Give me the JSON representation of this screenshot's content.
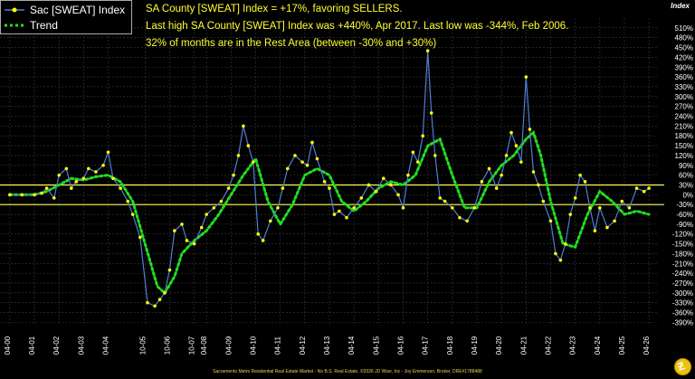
{
  "chart_data": {
    "type": "line",
    "title": "",
    "y_axis_title": "Index",
    "xlabel": "",
    "ylabel": "Index",
    "ylim": [
      -400,
      540
    ],
    "y_ticks": [
      "510%",
      "480%",
      "450%",
      "420%",
      "390%",
      "360%",
      "330%",
      "300%",
      "270%",
      "240%",
      "210%",
      "180%",
      "150%",
      "120%",
      "90%",
      "60%",
      "30%",
      "0%",
      "-30%",
      "-60%",
      "-90%",
      "-120%",
      "-150%",
      "-180%",
      "-210%",
      "-240%",
      "-270%",
      "-300%",
      "-330%",
      "-360%",
      "-390%"
    ],
    "y_tick_values": [
      510,
      480,
      450,
      420,
      390,
      360,
      330,
      300,
      270,
      240,
      210,
      180,
      150,
      120,
      90,
      60,
      30,
      0,
      -30,
      -60,
      -90,
      -120,
      -150,
      -180,
      -210,
      -240,
      -270,
      -300,
      -330,
      -360,
      -390
    ],
    "x_ticks": [
      "04-00",
      "04-01",
      "04-02",
      "04-03",
      "04-04",
      "10-05",
      "10-06",
      "10-07",
      "04-08",
      "04-09",
      "04-10",
      "04-11",
      "04-12",
      "04-13",
      "04-14",
      "04-15",
      "04-16",
      "04-17",
      "04-18",
      "04-19",
      "04-20",
      "04-21",
      "04-22",
      "04-23",
      "04-24",
      "04-25",
      "04-26"
    ],
    "x_tick_years": [
      2000,
      2001,
      2002,
      2003,
      2004,
      2005.5,
      2006.5,
      2007.5,
      2008,
      2009,
      2010,
      2011,
      2012,
      2013,
      2014,
      2015,
      2016,
      2017,
      2018,
      2019,
      2020,
      2021,
      2022,
      2023,
      2024,
      2025,
      2026
    ],
    "rest_area": [
      -30,
      30
    ],
    "grid": true,
    "legend_position": "top-left",
    "series": [
      {
        "name": "Sac [SWEAT] Index",
        "color": "#4f7fd4",
        "marker_color": "#ffff00",
        "x": [
          2000,
          2000.5,
          2001,
          2001.3,
          2001.5,
          2001.8,
          2002,
          2002.3,
          2002.5,
          2002.7,
          2003,
          2003.2,
          2003.5,
          2003.8,
          2004,
          2004.2,
          2004.5,
          2004.8,
          2005,
          2005.3,
          2005.6,
          2005.9,
          2006.1,
          2006.3,
          2006.5,
          2006.7,
          2007,
          2007.2,
          2007.5,
          2007.8,
          2008,
          2008.3,
          2008.6,
          2008.9,
          2009.1,
          2009.3,
          2009.5,
          2009.7,
          2009.9,
          2010.1,
          2010.3,
          2010.6,
          2010.9,
          2011.1,
          2011.3,
          2011.6,
          2011.9,
          2012.1,
          2012.3,
          2012.5,
          2012.8,
          2013,
          2013.2,
          2013.4,
          2013.7,
          2014,
          2014.3,
          2014.6,
          2014.9,
          2015.2,
          2015.5,
          2015.8,
          2016,
          2016.2,
          2016.4,
          2016.6,
          2016.8,
          2017,
          2017.15,
          2017.3,
          2017.5,
          2017.7,
          2018,
          2018.3,
          2018.6,
          2018.9,
          2019.2,
          2019.5,
          2019.8,
          2020,
          2020.2,
          2020.4,
          2020.6,
          2020.8,
          2021,
          2021.15,
          2021.3,
          2021.5,
          2021.7,
          2022,
          2022.2,
          2022.4,
          2022.6,
          2022.8,
          2023,
          2023.2,
          2023.4,
          2023.6,
          2023.8,
          2024,
          2024.3,
          2024.6,
          2024.9,
          2025.2,
          2025.5,
          2025.8,
          2026
        ],
        "y": [
          0,
          0,
          0,
          5,
          20,
          -10,
          60,
          80,
          20,
          40,
          50,
          80,
          70,
          90,
          130,
          50,
          20,
          -20,
          -60,
          -130,
          -330,
          -340,
          -320,
          -300,
          -230,
          -110,
          -90,
          -140,
          -150,
          -100,
          -60,
          -40,
          -20,
          20,
          60,
          120,
          210,
          150,
          100,
          -120,
          -140,
          -80,
          -40,
          20,
          80,
          120,
          100,
          90,
          160,
          110,
          40,
          20,
          -60,
          -50,
          -70,
          -40,
          -10,
          30,
          10,
          50,
          30,
          0,
          -40,
          60,
          130,
          100,
          180,
          440,
          250,
          120,
          -10,
          -20,
          -40,
          -70,
          -80,
          -40,
          40,
          80,
          20,
          60,
          120,
          190,
          150,
          100,
          360,
          200,
          70,
          30,
          -20,
          -80,
          -180,
          -200,
          -150,
          -60,
          -10,
          60,
          40,
          -40,
          -110,
          -40,
          -100,
          -80,
          -20,
          -40,
          20,
          10,
          20
        ],
        "value_labels": []
      },
      {
        "name": "Trend",
        "color": "#22dd22",
        "style": "dotted",
        "x": [
          2000,
          2001,
          2001.5,
          2002,
          2002.5,
          2003,
          2003.5,
          2004,
          2004.5,
          2005,
          2005.5,
          2006,
          2006.3,
          2006.7,
          2007,
          2007.5,
          2008,
          2008.5,
          2009,
          2009.5,
          2010,
          2010.5,
          2011,
          2011.5,
          2012,
          2012.5,
          2013,
          2013.5,
          2014,
          2014.5,
          2015,
          2015.5,
          2016,
          2016.5,
          2017,
          2017.5,
          2018,
          2018.5,
          2019,
          2019.5,
          2020,
          2020.5,
          2021,
          2021.3,
          2021.6,
          2022,
          2022.5,
          2023,
          2023.5,
          2024,
          2024.5,
          2025,
          2025.5,
          2026
        ],
        "y": [
          0,
          0,
          10,
          30,
          50,
          45,
          55,
          60,
          40,
          -20,
          -150,
          -280,
          -300,
          -250,
          -180,
          -140,
          -110,
          -60,
          0,
          60,
          110,
          -20,
          -90,
          -30,
          60,
          80,
          60,
          -20,
          -50,
          -20,
          20,
          40,
          30,
          60,
          150,
          170,
          60,
          -40,
          -40,
          40,
          90,
          120,
          170,
          190,
          120,
          -20,
          -150,
          -160,
          -60,
          10,
          -20,
          -60,
          -50,
          -60
        ]
      }
    ]
  },
  "legend": {
    "index_label": "Sac [SWEAT] Index",
    "trend_label": "Trend"
  },
  "annotations": {
    "line1": "SA County [SWEAT] Index = +17%, favoring SELLERS.",
    "line2": "Last high SA County [SWEAT] Index was +440%, Apr 2017. Last low was -344%, Feb 2006.",
    "line3": "32% of months are in the Rest Area (between -30% and +30%)"
  },
  "footer": "Sacramento Metro Residential Real Estate Market - No B.S. Real Estate, ©2026 JD Wise, Inc - Joy Emmerson, Broker, DRE#1788488",
  "colors": {
    "background": "#000000",
    "grid": "#3a3a3a",
    "rest_band": "#ffff55",
    "annotation": "#ffff33",
    "axis_text": "#ffffff"
  }
}
